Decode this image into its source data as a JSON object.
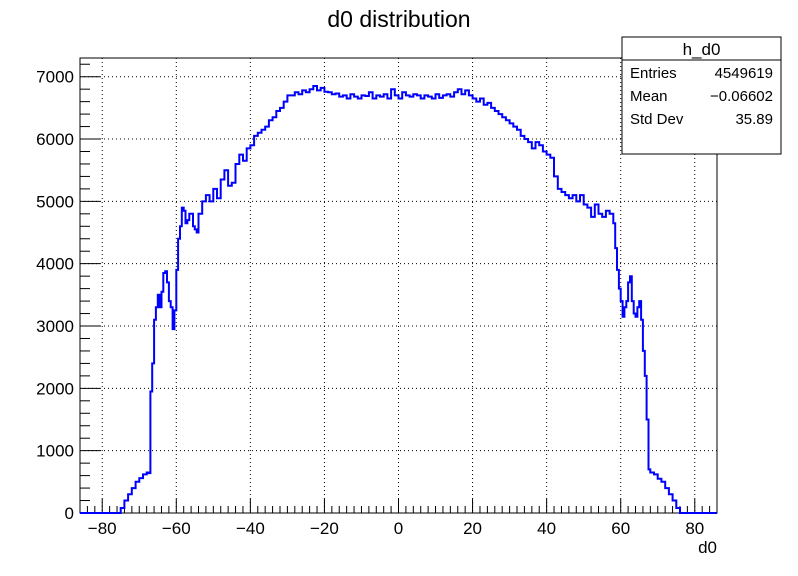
{
  "chart_data": {
    "type": "histogram",
    "title": "d0 distribution",
    "xlabel": "d0",
    "ylabel": "",
    "xlim": [
      -86,
      86
    ],
    "ylim": [
      0,
      7300
    ],
    "x_ticks": [
      -80,
      -60,
      -40,
      -20,
      0,
      20,
      40,
      60,
      80
    ],
    "x_tick_labels": [
      "−80",
      "−60",
      "−40",
      "−20",
      "0",
      "20",
      "40",
      "60",
      "80"
    ],
    "y_ticks": [
      0,
      1000,
      2000,
      3000,
      4000,
      5000,
      6000,
      7000
    ],
    "y_tick_labels": [
      "0",
      "1000",
      "2000",
      "3000",
      "4000",
      "5000",
      "6000",
      "7000"
    ],
    "grid": true,
    "line_color": "#0000ff",
    "series": [
      {
        "name": "h_d0",
        "points": [
          [
            -86,
            0
          ],
          [
            -76,
            0
          ],
          [
            -75,
            80
          ],
          [
            -74,
            200
          ],
          [
            -73,
            300
          ],
          [
            -72,
            400
          ],
          [
            -71,
            500
          ],
          [
            -70,
            560
          ],
          [
            -69,
            620
          ],
          [
            -68,
            650
          ],
          [
            -67.5,
            640
          ],
          [
            -67,
            1950
          ],
          [
            -66.5,
            2400
          ],
          [
            -66,
            3100
          ],
          [
            -65.5,
            3300
          ],
          [
            -65,
            3500
          ],
          [
            -64.5,
            3300
          ],
          [
            -64,
            3550
          ],
          [
            -63.5,
            3850
          ],
          [
            -63,
            3880
          ],
          [
            -62.5,
            3700
          ],
          [
            -62,
            3400
          ],
          [
            -61.5,
            3300
          ],
          [
            -61,
            2950
          ],
          [
            -60.5,
            3250
          ],
          [
            -60,
            3900
          ],
          [
            -59.5,
            4400
          ],
          [
            -59,
            4600
          ],
          [
            -58.5,
            4900
          ],
          [
            -58,
            4850
          ],
          [
            -57.5,
            4650
          ],
          [
            -57,
            4700
          ],
          [
            -56.5,
            4800
          ],
          [
            -56,
            4800
          ],
          [
            -55.5,
            4600
          ],
          [
            -55,
            4550
          ],
          [
            -54.5,
            4500
          ],
          [
            -54,
            4800
          ],
          [
            -53,
            5000
          ],
          [
            -52,
            5100
          ],
          [
            -51,
            5000
          ],
          [
            -50,
            5200
          ],
          [
            -49,
            5050
          ],
          [
            -48,
            5350
          ],
          [
            -47,
            5500
          ],
          [
            -46,
            5250
          ],
          [
            -45,
            5300
          ],
          [
            -44,
            5600
          ],
          [
            -43,
            5750
          ],
          [
            -42,
            5650
          ],
          [
            -41,
            5850
          ],
          [
            -40,
            5900
          ],
          [
            -39,
            6050
          ],
          [
            -38,
            6100
          ],
          [
            -37,
            6150
          ],
          [
            -36,
            6200
          ],
          [
            -35,
            6300
          ],
          [
            -34,
            6350
          ],
          [
            -33,
            6450
          ],
          [
            -32,
            6500
          ],
          [
            -31,
            6600
          ],
          [
            -30,
            6700
          ],
          [
            -29,
            6700
          ],
          [
            -28,
            6750
          ],
          [
            -27,
            6720
          ],
          [
            -26,
            6780
          ],
          [
            -25,
            6750
          ],
          [
            -24,
            6800
          ],
          [
            -23,
            6850
          ],
          [
            -22,
            6780
          ],
          [
            -21,
            6820
          ],
          [
            -20,
            6760
          ],
          [
            -19,
            6750
          ],
          [
            -18,
            6720
          ],
          [
            -17,
            6730
          ],
          [
            -16,
            6680
          ],
          [
            -15,
            6700
          ],
          [
            -14,
            6650
          ],
          [
            -13,
            6720
          ],
          [
            -12,
            6680
          ],
          [
            -11,
            6650
          ],
          [
            -10,
            6700
          ],
          [
            -9,
            6690
          ],
          [
            -8,
            6750
          ],
          [
            -7,
            6650
          ],
          [
            -6,
            6700
          ],
          [
            -5,
            6680
          ],
          [
            -4,
            6720
          ],
          [
            -3,
            6650
          ],
          [
            -2,
            6800
          ],
          [
            -1,
            6700
          ],
          [
            0,
            6650
          ],
          [
            1,
            6750
          ],
          [
            2,
            6700
          ],
          [
            3,
            6680
          ],
          [
            4,
            6720
          ],
          [
            5,
            6700
          ],
          [
            6,
            6650
          ],
          [
            7,
            6700
          ],
          [
            8,
            6680
          ],
          [
            9,
            6650
          ],
          [
            10,
            6720
          ],
          [
            11,
            6660
          ],
          [
            12,
            6700
          ],
          [
            13,
            6720
          ],
          [
            14,
            6680
          ],
          [
            15,
            6750
          ],
          [
            16,
            6800
          ],
          [
            17,
            6720
          ],
          [
            18,
            6780
          ],
          [
            19,
            6700
          ],
          [
            20,
            6650
          ],
          [
            21,
            6600
          ],
          [
            22,
            6650
          ],
          [
            23,
            6550
          ],
          [
            24,
            6580
          ],
          [
            25,
            6500
          ],
          [
            26,
            6450
          ],
          [
            27,
            6400
          ],
          [
            28,
            6350
          ],
          [
            29,
            6300
          ],
          [
            30,
            6250
          ],
          [
            31,
            6200
          ],
          [
            32,
            6150
          ],
          [
            33,
            6050
          ],
          [
            34,
            6000
          ],
          [
            35,
            5950
          ],
          [
            36,
            5850
          ],
          [
            37,
            5950
          ],
          [
            38,
            5900
          ],
          [
            39,
            5800
          ],
          [
            40,
            5750
          ],
          [
            41,
            5700
          ],
          [
            42,
            5400
          ],
          [
            43,
            5200
          ],
          [
            44,
            5150
          ],
          [
            45,
            5100
          ],
          [
            46,
            5050
          ],
          [
            47,
            5100
          ],
          [
            48,
            5000
          ],
          [
            49,
            5100
          ],
          [
            50,
            4950
          ],
          [
            51,
            4900
          ],
          [
            52,
            4750
          ],
          [
            53,
            4950
          ],
          [
            54,
            4800
          ],
          [
            55,
            4750
          ],
          [
            56,
            4850
          ],
          [
            57,
            4800
          ],
          [
            58,
            4650
          ],
          [
            58.5,
            4250
          ],
          [
            59,
            3900
          ],
          [
            59.5,
            3600
          ],
          [
            60,
            3400
          ],
          [
            60.5,
            3150
          ],
          [
            61,
            3300
          ],
          [
            61.5,
            3400
          ],
          [
            62,
            3700
          ],
          [
            62.5,
            3800
          ],
          [
            63,
            3400
          ],
          [
            63.5,
            3200
          ],
          [
            64,
            3150
          ],
          [
            64.5,
            3300
          ],
          [
            65,
            3400
          ],
          [
            65.5,
            3100
          ],
          [
            66,
            2600
          ],
          [
            66.5,
            2200
          ],
          [
            67,
            1500
          ],
          [
            67.5,
            700
          ],
          [
            68,
            650
          ],
          [
            69,
            620
          ],
          [
            70,
            550
          ],
          [
            71,
            500
          ],
          [
            72,
            400
          ],
          [
            73,
            300
          ],
          [
            74,
            200
          ],
          [
            75,
            80
          ],
          [
            76,
            0
          ],
          [
            86,
            0
          ]
        ]
      }
    ],
    "stats_box": {
      "title": "h_d0",
      "rows": [
        {
          "label": "Entries",
          "value": "4549619"
        },
        {
          "label": "Mean",
          "value": "−0.06602"
        },
        {
          "label": "Std Dev",
          "value": "35.89"
        }
      ]
    }
  }
}
